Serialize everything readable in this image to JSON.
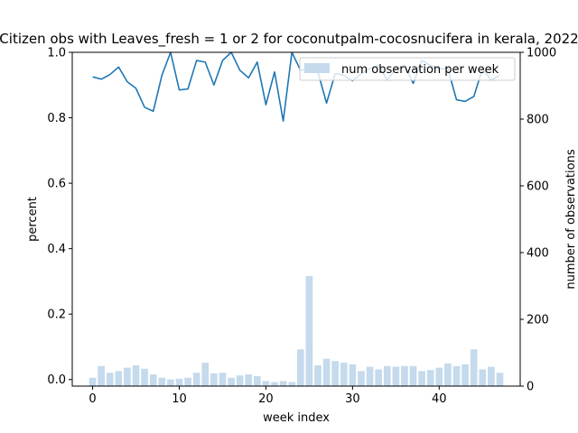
{
  "chart_data": {
    "type": "bar+line",
    "title": "Citizen obs with Leaves_fresh = 1 or 2 for coconutpalm-cocosnucifera in kerala, 2022",
    "xlabel": "week index",
    "ylabel_left": "percent",
    "ylabel_right": "number of observations",
    "xlim": [
      -2.35,
      49.35
    ],
    "ylim_left": [
      -0.02,
      1.0
    ],
    "ylim_right": [
      0,
      1000
    ],
    "xticks": [
      0,
      10,
      20,
      30,
      40
    ],
    "yticks_left": [
      0.0,
      0.2,
      0.4,
      0.6,
      0.8,
      1.0
    ],
    "yticks_right": [
      0,
      200,
      400,
      600,
      800,
      1000
    ],
    "legend": {
      "position": "top-right",
      "entries": [
        "num observation per week"
      ]
    },
    "colors": {
      "bar": "#c5daec",
      "line": "#1f77b4"
    },
    "bars": {
      "name": "num observation per week",
      "x": [
        0,
        1,
        2,
        3,
        4,
        5,
        6,
        7,
        8,
        9,
        10,
        11,
        12,
        13,
        14,
        15,
        16,
        17,
        18,
        19,
        20,
        21,
        22,
        23,
        24,
        25,
        26,
        27,
        28,
        29,
        30,
        31,
        32,
        33,
        34,
        35,
        36,
        37,
        38,
        39,
        40,
        41,
        42,
        43,
        44,
        45,
        46,
        47
      ],
      "values": [
        25,
        60,
        40,
        45,
        55,
        62,
        52,
        35,
        25,
        20,
        22,
        25,
        40,
        70,
        38,
        40,
        25,
        32,
        35,
        30,
        15,
        12,
        15,
        12,
        110,
        330,
        62,
        82,
        75,
        70,
        65,
        45,
        58,
        50,
        60,
        58,
        60,
        60,
        45,
        48,
        55,
        68,
        60,
        65,
        110,
        50,
        58,
        40
      ]
    },
    "line": {
      "x": [
        0,
        1,
        2,
        3,
        4,
        5,
        6,
        7,
        8,
        9,
        10,
        11,
        12,
        13,
        14,
        15,
        16,
        17,
        18,
        19,
        20,
        21,
        22,
        23,
        24,
        25,
        26,
        27,
        28,
        29,
        30,
        31,
        32,
        33,
        34,
        35,
        36,
        37,
        38,
        39,
        40,
        41,
        42,
        43,
        44,
        45,
        46,
        47
      ],
      "values": [
        0.925,
        0.918,
        0.932,
        0.955,
        0.91,
        0.89,
        0.832,
        0.82,
        0.93,
        1.0,
        0.885,
        0.888,
        0.975,
        0.97,
        0.9,
        0.975,
        1.0,
        0.945,
        0.922,
        0.97,
        0.84,
        0.94,
        0.79,
        1.0,
        0.945,
        0.95,
        0.94,
        0.845,
        0.935,
        0.93,
        0.913,
        0.935,
        0.95,
        0.96,
        0.915,
        0.95,
        0.96,
        0.905,
        0.975,
        0.96,
        0.95,
        0.95,
        0.855,
        0.85,
        0.865,
        0.95,
        0.915,
        0.93
      ]
    }
  }
}
